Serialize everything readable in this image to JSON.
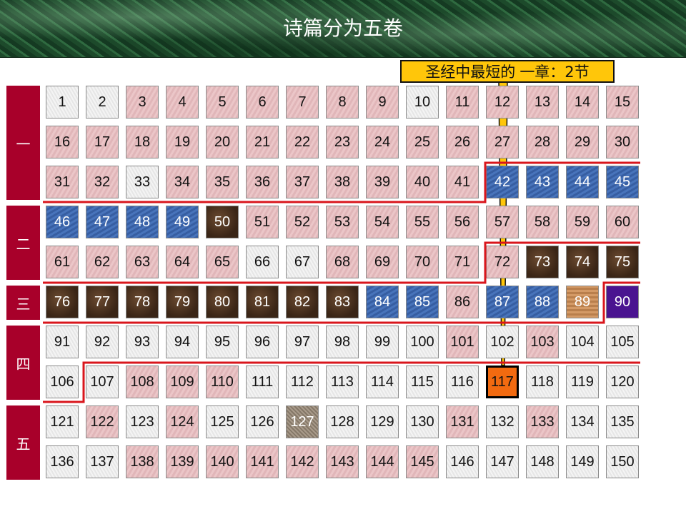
{
  "title": "诗篇分为五卷",
  "books": [
    {
      "label": "一"
    },
    {
      "label": "二"
    },
    {
      "label": "三"
    },
    {
      "label": "四"
    },
    {
      "label": "五"
    }
  ],
  "cell_colors": {
    "w": "#eeeeee",
    "p": "#e7bfc2",
    "b": "#3f69b0",
    "d": "#4b3322",
    "o": "#c88e5a",
    "v": "#4a1490",
    "s": "#9c8f80",
    "h": "#f26a10"
  },
  "chapter_types": [
    "wwpppppppwppppp",
    "ppppppppppppppp",
    "ppwppppppppbbbb",
    "bbbbdpppppppppp",
    "pppppwwpppppddd",
    "ddddddddbbpbbov",
    "wwwwwwwwwwpwpww",
    "wwpppwwwwwwhwww",
    "wpwpwwswwwpwpww",
    "wwppppppppwwwww"
  ],
  "callout": {
    "line1": "圣经中最短的",
    "line2": "一章：2节",
    "highlight_chapter": 117
  },
  "divider_color": "#d9161c",
  "book_color": "#a8002a"
}
